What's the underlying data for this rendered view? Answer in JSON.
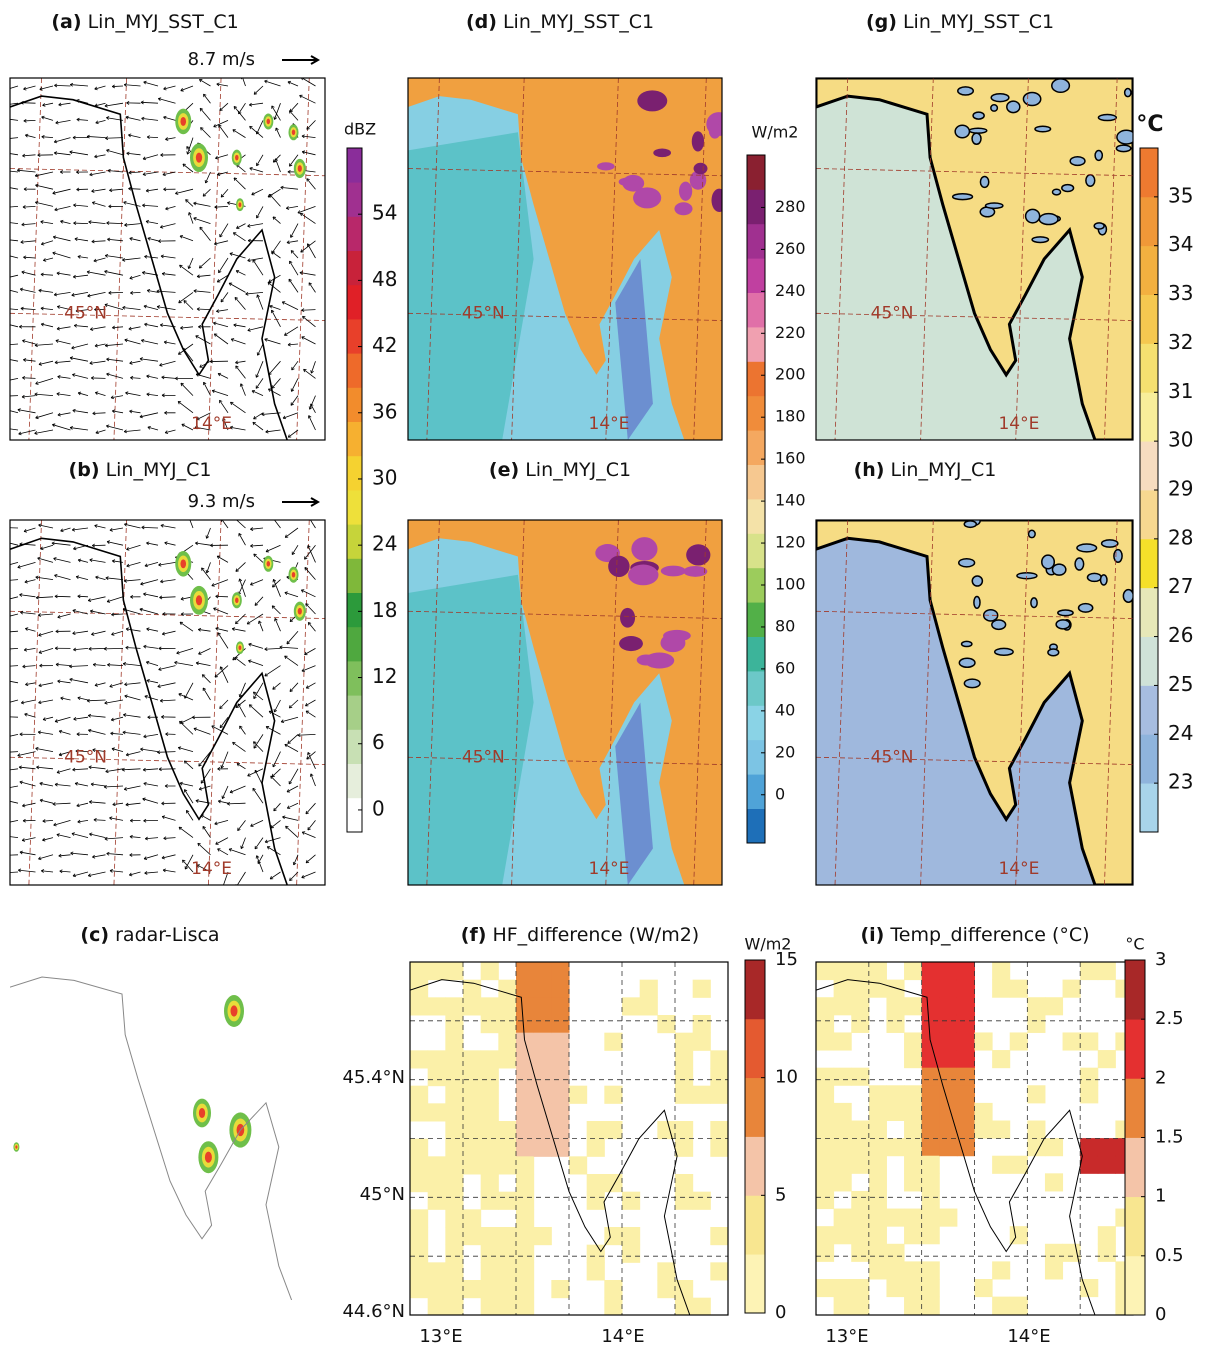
{
  "panels": [
    {
      "letter": "(a)",
      "title": "Lin_MYJ_SST_C1",
      "vector_scale": "8.7 m/s",
      "lat_label": "45°N",
      "lon_label": "14°E"
    },
    {
      "letter": "(b)",
      "title": "Lin_MYJ_C1",
      "vector_scale": "9.3 m/s",
      "lat_label": "45°N",
      "lon_label": "14°E"
    },
    {
      "letter": "(c)",
      "title": "radar-Lisca"
    },
    {
      "letter": "(d)",
      "title": "Lin_MYJ_SST_C1",
      "lat_label": "45°N",
      "lon_label": "14°E"
    },
    {
      "letter": "(e)",
      "title": "Lin_MYJ_C1",
      "lat_label": "45°N",
      "lon_label": "14°E"
    },
    {
      "letter": "(f)",
      "title": "HF_difference (W/m2)",
      "lat_ticks": [
        "45.4°N",
        "45°N",
        "44.6°N"
      ],
      "lon_ticks": [
        "13°E",
        "14°E"
      ]
    },
    {
      "letter": "(g)",
      "title": "Lin_MYJ_SST_C1",
      "lat_label": "45°N",
      "lon_label": "14°E"
    },
    {
      "letter": "(h)",
      "title": "Lin_MYJ_C1",
      "lat_label": "45°N",
      "lon_label": "14°E"
    },
    {
      "letter": "(i)",
      "title": "Temp_difference (°C)",
      "lat_ticks": [],
      "lon_ticks": [
        "13°E",
        "14°E"
      ]
    }
  ],
  "colorbars": [
    {
      "unit": "dBZ",
      "lim": [
        -2,
        60
      ],
      "ticks": [
        0,
        6,
        12,
        18,
        24,
        30,
        36,
        42,
        48,
        54
      ],
      "colors": [
        "#ffffff",
        "#e6eedc",
        "#c8e0b4",
        "#a6cf88",
        "#7fbf5c",
        "#4fa83f",
        "#2c9a3b",
        "#7fb83a",
        "#c6d43a",
        "#eee03a",
        "#f5d230",
        "#f6b030",
        "#f28c2c",
        "#ee6a2a",
        "#e8402a",
        "#e02027",
        "#c8223a",
        "#b8286a",
        "#a03090",
        "#8a2d9a"
      ]
    },
    {
      "unit": "W/m2",
      "lim": [
        -23,
        305
      ],
      "ticks": [
        0,
        20,
        40,
        60,
        80,
        100,
        120,
        140,
        160,
        180,
        200,
        220,
        240,
        260,
        280
      ],
      "colors": [
        "#1e6fb8",
        "#4fa3d8",
        "#7cc4e4",
        "#8ad3e6",
        "#6cc8c8",
        "#3cb49a",
        "#52b048",
        "#9ccc5c",
        "#d8e28a",
        "#f4e2a8",
        "#f6c890",
        "#f4a860",
        "#f08c3a",
        "#ec7430",
        "#f0a0b0",
        "#e070a8",
        "#c040a0",
        "#a03090",
        "#7a2070",
        "#8a2030"
      ]
    },
    {
      "unit": "°C",
      "lim": [
        22,
        36
      ],
      "ticks": [
        23,
        24,
        25,
        26,
        27,
        28,
        29,
        30,
        31,
        32,
        33,
        34,
        35
      ],
      "colors": [
        "#a8d4ea",
        "#8fb4dc",
        "#a7bde0",
        "#cfe2d8",
        "#e7e8b8",
        "#f5e02a",
        "#f7d890",
        "#f6dcc0",
        "#f8ee9a",
        "#f5e070",
        "#f5c850",
        "#f3b040",
        "#f09838",
        "#ee7a30"
      ]
    },
    {
      "unit": "W/m2",
      "lim": [
        0,
        15
      ],
      "ticks": [
        0,
        5,
        10,
        15
      ],
      "colors": [
        "#fdf3b5",
        "#f8e690",
        "#f4c4a8",
        "#e8853a",
        "#e45a30",
        "#a82828"
      ]
    },
    {
      "unit": "°C",
      "lim": [
        0,
        3
      ],
      "ticks": [
        0,
        0.5,
        1,
        1.5,
        2,
        2.5,
        3
      ],
      "colors": [
        "#fdf3b5",
        "#f8e690",
        "#f4c4a8",
        "#e8853a",
        "#e43030",
        "#a82828"
      ]
    }
  ]
}
